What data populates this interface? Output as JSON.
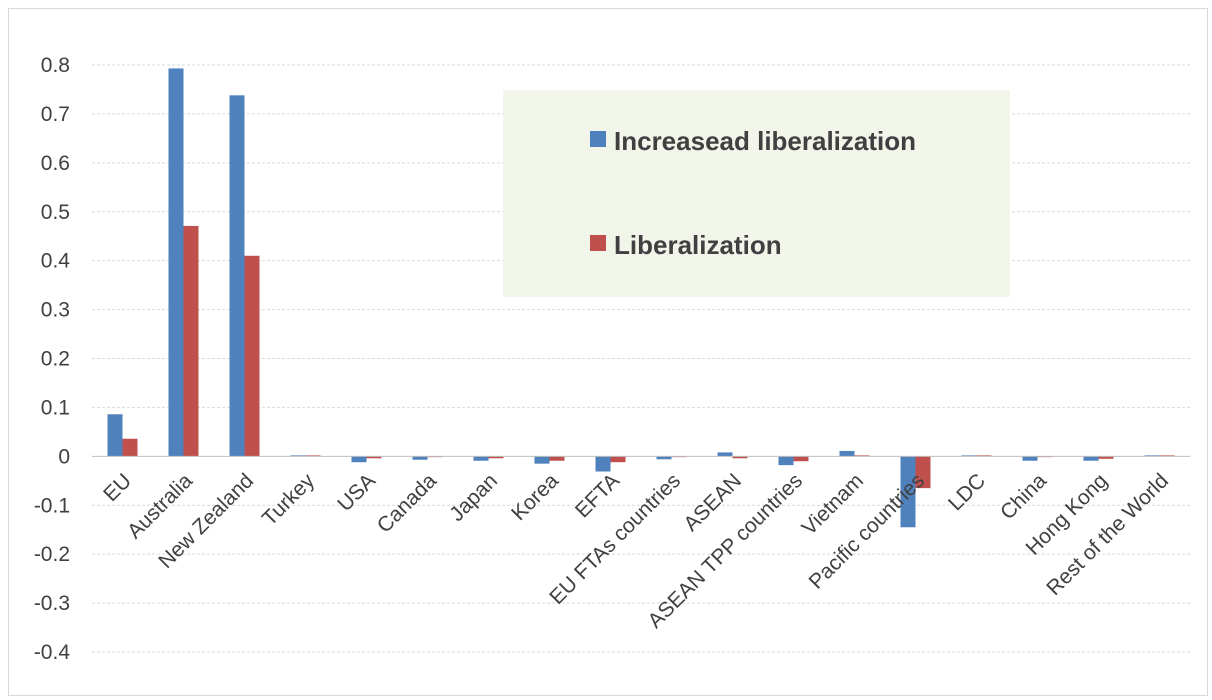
{
  "chart_data": {
    "type": "bar",
    "title": "",
    "xlabel": "",
    "ylabel": "",
    "ylim": [
      -0.4,
      0.8
    ],
    "yticks": [
      "0.8",
      "0.7",
      "0.6",
      "0.5",
      "0.4",
      "0.3",
      "0.2",
      "0.1",
      "0",
      "-0.1",
      "-0.2",
      "-0.3",
      "-0.4"
    ],
    "grid": true,
    "legend_position": "top-right",
    "categories": [
      "EU",
      "Australia",
      "New Zealand",
      "Turkey",
      "USA",
      "Canada",
      "Japan",
      "Korea",
      "EFTA",
      "EU FTAs countries",
      "ASEAN",
      "ASEAN TPP countries",
      "Vietnam",
      "Pacific countries",
      "LDC",
      "China",
      "Hong Kong",
      "Rest of the World"
    ],
    "series": [
      {
        "name": "Increasead liberalization",
        "color": "#4f81bd",
        "values": [
          0.086,
          0.793,
          0.738,
          0.002,
          -0.012,
          -0.007,
          -0.009,
          -0.015,
          -0.031,
          -0.006,
          0.008,
          -0.018,
          0.011,
          -0.145,
          0.002,
          -0.009,
          -0.009,
          0.002
        ]
      },
      {
        "name": "Liberalization",
        "color": "#c0504d",
        "values": [
          0.036,
          0.471,
          0.41,
          0.002,
          -0.004,
          0.0,
          -0.004,
          -0.009,
          -0.012,
          0.0,
          -0.004,
          -0.01,
          0.002,
          -0.065,
          0.002,
          0.0,
          -0.005,
          0.002
        ]
      }
    ]
  }
}
